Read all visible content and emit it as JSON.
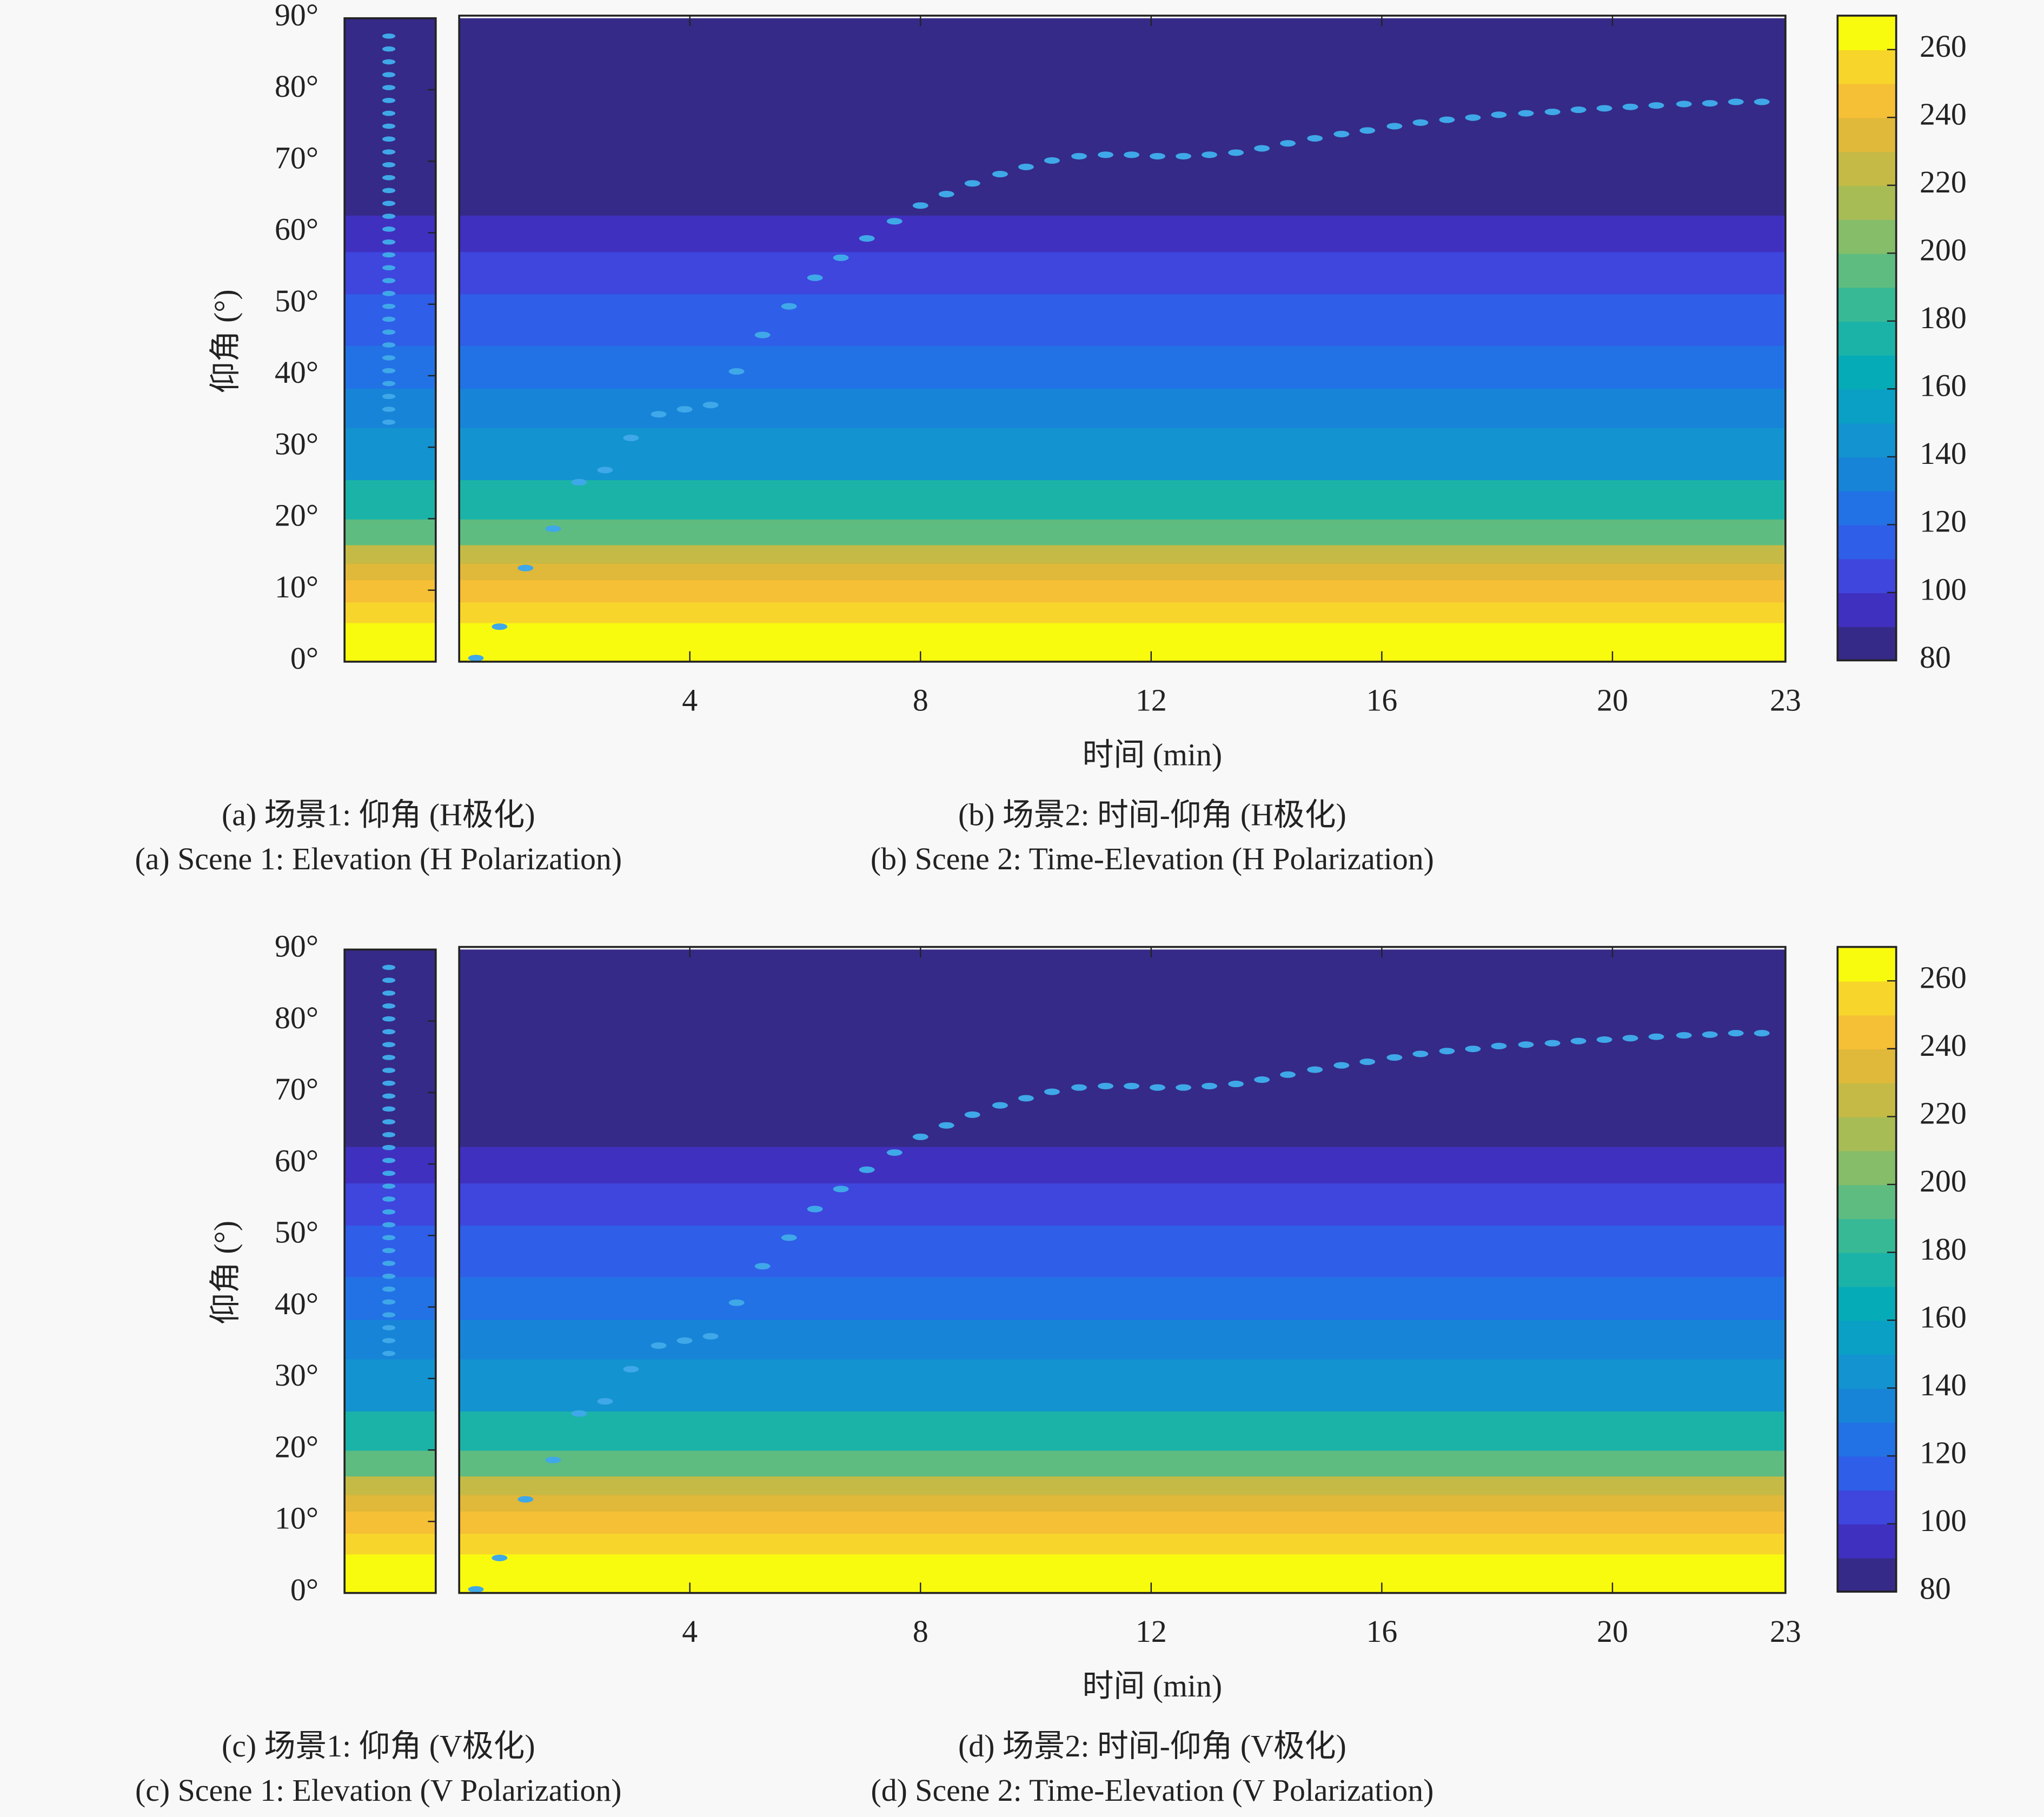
{
  "chart_data": [
    {
      "type": "strip",
      "caption_cn": "(a) 场景1: 仰角 (H极化)",
      "caption_en": "(a) Scene 1: Elevation (H Polarization)",
      "ylabel": "仰角 (°)",
      "ylim": [
        0,
        90
      ],
      "yticks": [
        {
          "value": 0,
          "label": "0°"
        },
        {
          "value": 10,
          "label": "10°"
        },
        {
          "value": 20,
          "label": "20°"
        },
        {
          "value": 30,
          "label": "30°"
        },
        {
          "value": 40,
          "label": "40°"
        },
        {
          "value": 50,
          "label": "50°"
        },
        {
          "value": 60,
          "label": "60°"
        },
        {
          "value": 70,
          "label": "70°"
        },
        {
          "value": 80,
          "label": "80°"
        },
        {
          "value": 90,
          "label": "90°"
        }
      ],
      "bands": {
        "edges": [
          0,
          5.5,
          8.4,
          11.5,
          13.8,
          16.4,
          20,
          25.5,
          32.8,
          38.3,
          44.3,
          51.5,
          57.4,
          62.5,
          90
        ],
        "values": [
          265,
          255,
          245,
          230,
          220,
          190,
          170,
          145,
          130,
          120,
          110,
          100,
          95,
          85
        ]
      },
      "markers": {
        "color": "#3fa8e8",
        "y": [
          87.5,
          85.7,
          83.9,
          82.1,
          80.3,
          78.5,
          76.7,
          74.9,
          73.1,
          71.3,
          69.5,
          67.7,
          65.9,
          64.1,
          62.3,
          60.5,
          58.7,
          56.9,
          55.1,
          53.3,
          51.5,
          49.7,
          47.9,
          46.1,
          44.3,
          42.5,
          40.7,
          38.9,
          37.1,
          35.3,
          33.5
        ]
      }
    },
    {
      "type": "heatmap",
      "caption_cn": "(b) 场景2: 时间-仰角 (H极化)",
      "caption_en": "(b) Scene 2: Time-Elevation (H Polarization)",
      "xlabel": "时间 (min)",
      "xlim": [
        0,
        23
      ],
      "xticks": [
        4,
        8,
        12,
        16,
        20,
        23
      ],
      "ylim": [
        0,
        90
      ],
      "bands": {
        "edges": [
          0,
          5.5,
          8.4,
          11.5,
          13.8,
          16.4,
          20,
          25.5,
          32.8,
          38.3,
          44.3,
          51.5,
          57.4,
          62.5,
          90
        ],
        "values": [
          265,
          255,
          245,
          230,
          220,
          190,
          170,
          145,
          130,
          120,
          110,
          100,
          95,
          85
        ]
      },
      "markers": {
        "color": "#3fa8e8",
        "x": [
          0.29,
          0.7,
          1.15,
          1.63,
          2.08,
          2.53,
          2.98,
          3.46,
          3.91,
          4.36,
          4.81,
          5.26,
          5.72,
          6.17,
          6.62,
          7.07,
          7.55,
          8.0,
          8.45,
          8.9,
          9.38,
          9.83,
          10.28,
          10.75,
          11.21,
          11.66,
          12.11,
          12.56,
          13.01,
          13.47,
          13.92,
          14.37,
          14.84,
          15.3,
          15.75,
          16.22,
          16.67,
          17.13,
          17.58,
          18.03,
          18.5,
          18.96,
          19.41,
          19.86,
          20.31,
          20.76,
          21.24,
          21.69,
          22.14,
          22.59
        ],
        "y": [
          0.5,
          4.9,
          13.1,
          18.6,
          25.1,
          26.8,
          31.3,
          34.6,
          35.3,
          35.9,
          40.6,
          45.7,
          49.7,
          53.7,
          56.5,
          59.2,
          61.6,
          63.8,
          65.4,
          66.9,
          68.2,
          69.2,
          70.1,
          70.7,
          70.9,
          70.9,
          70.7,
          70.7,
          70.9,
          71.2,
          71.8,
          72.5,
          73.2,
          73.8,
          74.3,
          74.9,
          75.4,
          75.8,
          76.1,
          76.5,
          76.7,
          76.9,
          77.2,
          77.4,
          77.6,
          77.8,
          78.0,
          78.1,
          78.3,
          78.3
        ]
      },
      "colorbar": {
        "clim": [
          80,
          270
        ],
        "ticks": [
          80,
          100,
          120,
          140,
          160,
          180,
          200,
          220,
          240,
          260
        ],
        "colormap": [
          "#352a87",
          "#4030c0",
          "#3e46de",
          "#2f5ee8",
          "#2272e6",
          "#1784d8",
          "#1393d0",
          "#0aa0c6",
          "#06abb8",
          "#1bb3a8",
          "#38b996",
          "#5fbc80",
          "#85bd69",
          "#a7bc55",
          "#c5ba45",
          "#e0b83a",
          "#f5bf36",
          "#f8d52a",
          "#f9fb0e"
        ]
      }
    },
    {
      "type": "strip",
      "caption_cn": "(c) 场景1: 仰角 (V极化)",
      "caption_en": "(c) Scene 1: Elevation (V Polarization)",
      "ylabel": "仰角 (°)",
      "ylim": [
        0,
        90
      ],
      "yticks": [
        {
          "value": 0,
          "label": "0°"
        },
        {
          "value": 10,
          "label": "10°"
        },
        {
          "value": 20,
          "label": "20°"
        },
        {
          "value": 30,
          "label": "30°"
        },
        {
          "value": 40,
          "label": "40°"
        },
        {
          "value": 50,
          "label": "50°"
        },
        {
          "value": 60,
          "label": "60°"
        },
        {
          "value": 70,
          "label": "70°"
        },
        {
          "value": 80,
          "label": "80°"
        },
        {
          "value": 90,
          "label": "90°"
        }
      ],
      "bands": {
        "edges": [
          0,
          5.5,
          8.4,
          11.5,
          13.8,
          16.4,
          20,
          25.5,
          32.8,
          38.3,
          44.3,
          51.5,
          57.4,
          62.5,
          90
        ],
        "values": [
          265,
          255,
          245,
          230,
          220,
          190,
          170,
          145,
          130,
          120,
          110,
          100,
          95,
          85
        ]
      },
      "markers": {
        "color": "#3fa8e8",
        "y": [
          87.5,
          85.7,
          83.9,
          82.1,
          80.3,
          78.5,
          76.7,
          74.9,
          73.1,
          71.3,
          69.5,
          67.7,
          65.9,
          64.1,
          62.3,
          60.5,
          58.7,
          56.9,
          55.1,
          53.3,
          51.5,
          49.7,
          47.9,
          46.1,
          44.3,
          42.5,
          40.7,
          38.9,
          37.1,
          35.3,
          33.5
        ]
      }
    },
    {
      "type": "heatmap",
      "caption_cn": "(d) 场景2: 时间-仰角 (V极化)",
      "caption_en": "(d) Scene 2: Time-Elevation (V Polarization)",
      "xlabel": "时间 (min)",
      "xlim": [
        0,
        23
      ],
      "xticks": [
        4,
        8,
        12,
        16,
        20,
        23
      ],
      "ylim": [
        0,
        90
      ],
      "bands": {
        "edges": [
          0,
          5.5,
          8.4,
          11.5,
          13.8,
          16.4,
          20,
          25.5,
          32.8,
          38.3,
          44.3,
          51.5,
          57.4,
          62.5,
          90
        ],
        "values": [
          265,
          255,
          245,
          230,
          220,
          190,
          170,
          145,
          130,
          120,
          110,
          100,
          95,
          85
        ]
      },
      "markers": {
        "color": "#3fa8e8",
        "x": [
          0.29,
          0.7,
          1.15,
          1.63,
          2.08,
          2.53,
          2.98,
          3.46,
          3.91,
          4.36,
          4.81,
          5.26,
          5.72,
          6.17,
          6.62,
          7.07,
          7.55,
          8.0,
          8.45,
          8.9,
          9.38,
          9.83,
          10.28,
          10.75,
          11.21,
          11.66,
          12.11,
          12.56,
          13.01,
          13.47,
          13.92,
          14.37,
          14.84,
          15.3,
          15.75,
          16.22,
          16.67,
          17.13,
          17.58,
          18.03,
          18.5,
          18.96,
          19.41,
          19.86,
          20.31,
          20.76,
          21.24,
          21.69,
          22.14,
          22.59
        ],
        "y": [
          0.5,
          4.9,
          13.1,
          18.6,
          25.1,
          26.8,
          31.3,
          34.6,
          35.3,
          35.9,
          40.6,
          45.7,
          49.7,
          53.7,
          56.5,
          59.2,
          61.6,
          63.8,
          65.4,
          66.9,
          68.2,
          69.2,
          70.1,
          70.7,
          70.9,
          70.9,
          70.7,
          70.7,
          70.9,
          71.2,
          71.8,
          72.5,
          73.2,
          73.8,
          74.3,
          74.9,
          75.4,
          75.8,
          76.1,
          76.5,
          76.7,
          76.9,
          77.2,
          77.4,
          77.6,
          77.8,
          78.0,
          78.1,
          78.3,
          78.3
        ]
      },
      "colorbar": {
        "clim": [
          80,
          270
        ],
        "ticks": [
          80,
          100,
          120,
          140,
          160,
          180,
          200,
          220,
          240,
          260
        ],
        "colormap": [
          "#352a87",
          "#4030c0",
          "#3e46de",
          "#2f5ee8",
          "#2272e6",
          "#1784d8",
          "#1393d0",
          "#0aa0c6",
          "#06abb8",
          "#1bb3a8",
          "#38b996",
          "#5fbc80",
          "#85bd69",
          "#a7bc55",
          "#c5ba45",
          "#e0b83a",
          "#f5bf36",
          "#f8d52a",
          "#f9fb0e"
        ]
      }
    }
  ]
}
